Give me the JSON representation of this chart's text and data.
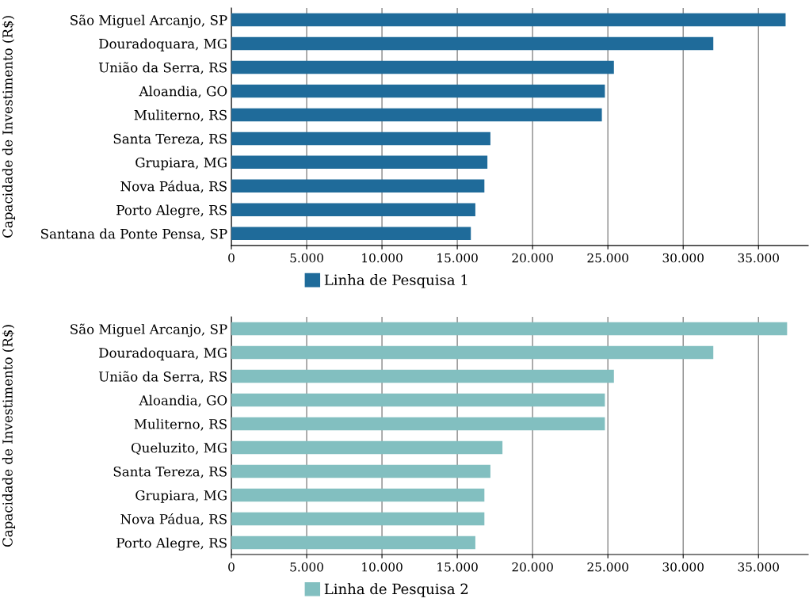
{
  "chart_data": [
    {
      "type": "bar",
      "orientation": "horizontal",
      "ylabel": "Capacidade de Investimento (R$)",
      "categories": [
        "São Miguel Arcanjo, SP",
        "Douradoquara, MG",
        "União da Serra, RS",
        "Aloandia, GO",
        "Muliterno, RS",
        "Santa Tereza, RS",
        "Grupiara, MG",
        "Nova Pádua, RS",
        "Porto Alegre, RS",
        "Santana da Ponte Pensa, SP"
      ],
      "series": [
        {
          "name": "Linha de Pesquisa 1",
          "color": "#1f6b9a",
          "values": [
            36800,
            32000,
            25400,
            24800,
            24600,
            17200,
            17000,
            16800,
            16200,
            15900
          ]
        }
      ],
      "xlim": [
        0,
        38300
      ],
      "xticks": [
        0,
        {
          "value": 5000,
          "label": "5.000"
        },
        {
          "value": 10000,
          "label": "10.000"
        },
        {
          "value": 15000,
          "label": "15.000"
        },
        {
          "value": 20000,
          "label": "20.000"
        },
        {
          "value": 25000,
          "label": "25.000"
        },
        {
          "value": 30000,
          "label": "30.000"
        },
        {
          "value": 35000,
          "label": "35.000"
        }
      ],
      "grid": "x",
      "legend": "bottom"
    },
    {
      "type": "bar",
      "orientation": "horizontal",
      "ylabel": "Capacidade de Investimento (R$)",
      "categories": [
        "São Miguel Arcanjo, SP",
        "Douradoquara, MG",
        "União da Serra, RS",
        "Aloandia, GO",
        "Muliterno, RS",
        "Queluzito, MG",
        "Santa Tereza, RS",
        "Grupiara, MG",
        "Nova Pádua, RS",
        "Porto Alegre, RS"
      ],
      "series": [
        {
          "name": "Linha de Pesquisa 2",
          "color": "#82bfc0",
          "values": [
            36900,
            32000,
            25400,
            24800,
            24800,
            18000,
            17200,
            16800,
            16800,
            16200
          ]
        }
      ],
      "xlim": [
        0,
        38300
      ],
      "xticks": [
        0,
        {
          "value": 5000,
          "label": "5.000"
        },
        {
          "value": 10000,
          "label": "10.000"
        },
        {
          "value": 15000,
          "label": "15.000"
        },
        {
          "value": 20000,
          "label": "20.000"
        },
        {
          "value": 25000,
          "label": "25.000"
        },
        {
          "value": 30000,
          "label": "30.000"
        },
        {
          "value": 35000,
          "label": "35.000"
        }
      ],
      "grid": "x",
      "legend": "bottom"
    }
  ]
}
